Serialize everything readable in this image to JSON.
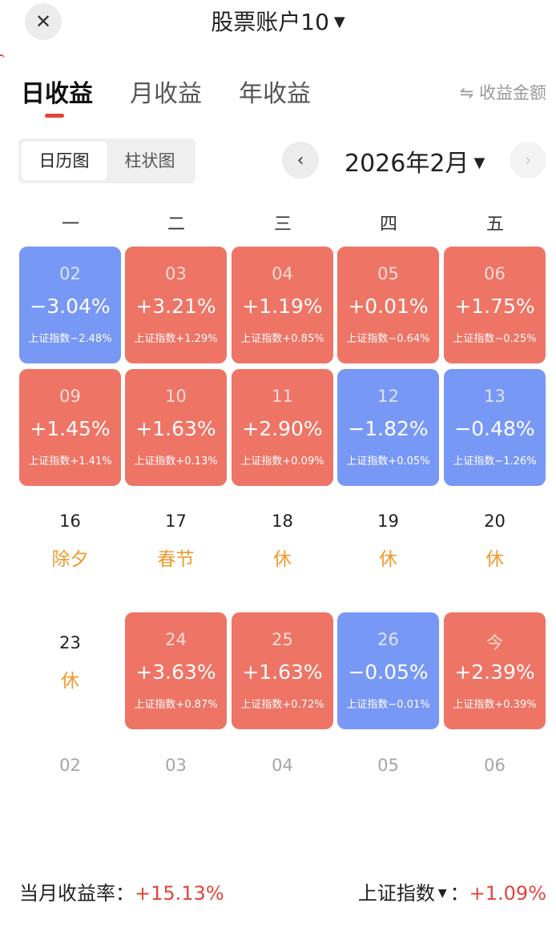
{
  "header": {
    "title": "股票账户10",
    "close_icon": "close-icon",
    "dropdown_icon": "caret-down-icon"
  },
  "tabs": [
    {
      "label": "日收益",
      "active": true
    },
    {
      "label": "月收益",
      "active": false
    },
    {
      "label": "年收益",
      "active": false
    }
  ],
  "toggle_amount": "⇋ 收益金额",
  "view_switch": [
    {
      "label": "日历图",
      "active": true
    },
    {
      "label": "柱状图",
      "active": false
    }
  ],
  "month_nav": {
    "label": "2026年2月",
    "prev_icon": "chevron-left-icon",
    "next_icon": "chevron-right-icon"
  },
  "weekdays": [
    "一",
    "二",
    "三",
    "四",
    "五"
  ],
  "colors": {
    "up": "#ee7465",
    "down": "#7898f5",
    "holiday": "#f09a2c",
    "accent_red": "#e4443a"
  },
  "calendar": {
    "week1": [
      {
        "date": "02",
        "pct": "−3.04%",
        "idx": "上证指数−2.48%",
        "trend": "down"
      },
      {
        "date": "03",
        "pct": "+3.21%",
        "idx": "上证指数+1.29%",
        "trend": "up"
      },
      {
        "date": "04",
        "pct": "+1.19%",
        "idx": "上证指数+0.85%",
        "trend": "up"
      },
      {
        "date": "05",
        "pct": "+0.01%",
        "idx": "上证指数−0.64%",
        "trend": "up"
      },
      {
        "date": "06",
        "pct": "+1.75%",
        "idx": "上证指数−0.25%",
        "trend": "up"
      }
    ],
    "week2": [
      {
        "date": "09",
        "pct": "+1.45%",
        "idx": "上证指数+1.41%",
        "trend": "up"
      },
      {
        "date": "10",
        "pct": "+1.63%",
        "idx": "上证指数+0.13%",
        "trend": "up"
      },
      {
        "date": "11",
        "pct": "+2.90%",
        "idx": "上证指数+0.09%",
        "trend": "up"
      },
      {
        "date": "12",
        "pct": "−1.82%",
        "idx": "上证指数+0.05%",
        "trend": "down"
      },
      {
        "date": "13",
        "pct": "−0.48%",
        "idx": "上证指数−1.26%",
        "trend": "down"
      }
    ],
    "week3": [
      {
        "date": "16",
        "holiday": "除夕"
      },
      {
        "date": "17",
        "holiday": "春节"
      },
      {
        "date": "18",
        "holiday": "休"
      },
      {
        "date": "19",
        "holiday": "休"
      },
      {
        "date": "20",
        "holiday": "休"
      }
    ],
    "week4": [
      {
        "date": "23",
        "holiday": "休"
      },
      {
        "date": "24",
        "pct": "+3.63%",
        "idx": "上证指数+0.87%",
        "trend": "up"
      },
      {
        "date": "25",
        "pct": "+1.63%",
        "idx": "上证指数+0.72%",
        "trend": "up"
      },
      {
        "date": "26",
        "pct": "−0.05%",
        "idx": "上证指数−0.01%",
        "trend": "down"
      },
      {
        "date": "今",
        "pct": "+2.39%",
        "idx": "上证指数+0.39%",
        "trend": "up"
      }
    ],
    "week5": [
      {
        "date": "02"
      },
      {
        "date": "03"
      },
      {
        "date": "04"
      },
      {
        "date": "05"
      },
      {
        "date": "06"
      }
    ]
  },
  "footer": {
    "monthly_label": "当月收益率：",
    "monthly_value": "+15.13%",
    "index_label": "上证指数",
    "index_sep": "：",
    "index_value": "+1.09%"
  }
}
